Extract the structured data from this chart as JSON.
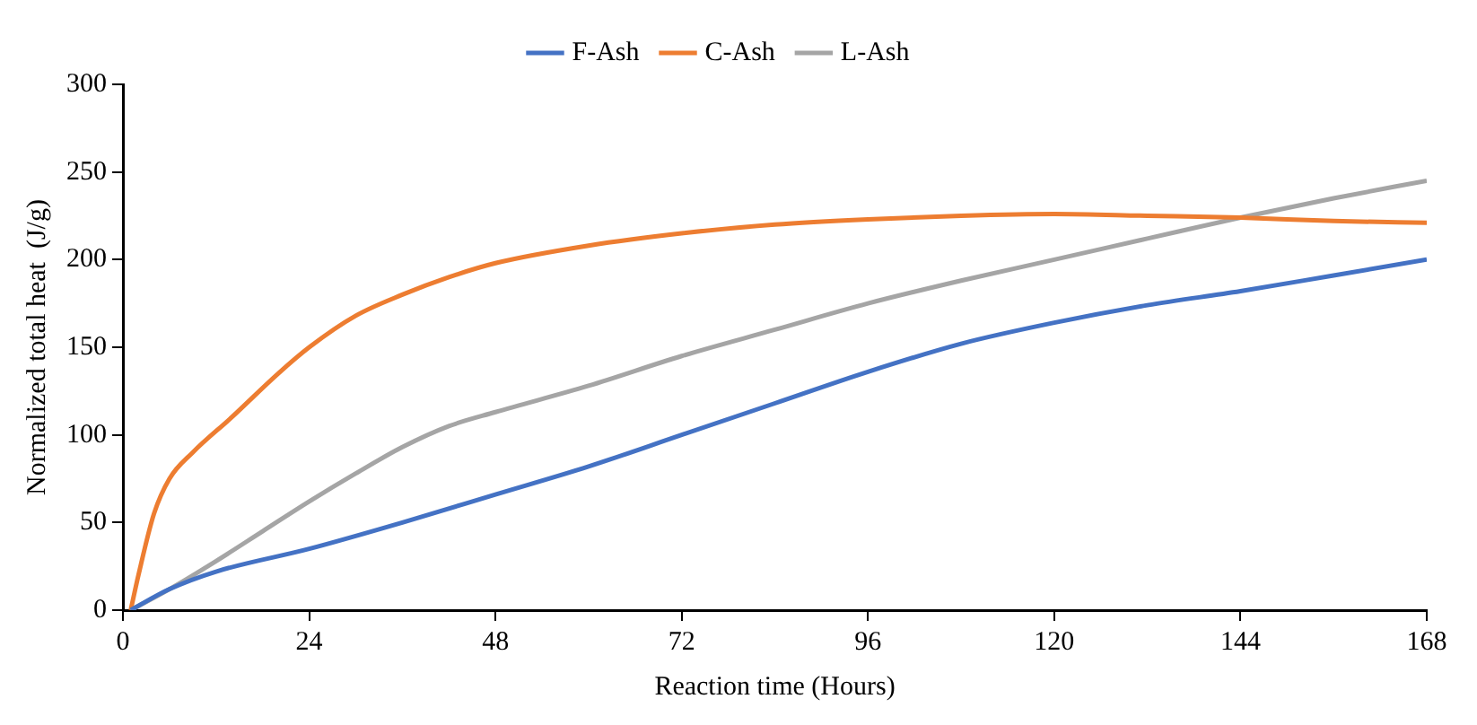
{
  "chart_data": {
    "type": "line",
    "xlabel": "Reaction time (Hours)",
    "ylabel": "Normalized total heat  (J/g)",
    "xlim": [
      0,
      168
    ],
    "xticks": [
      0,
      24,
      48,
      72,
      96,
      120,
      144,
      168
    ],
    "ylim": [
      0,
      300
    ],
    "yticks": [
      0,
      50,
      100,
      150,
      200,
      250,
      300
    ],
    "grid": false,
    "legend": "top",
    "marker": "none",
    "line_style": "solid",
    "series": [
      {
        "name": "F-Ash",
        "color": "#4472c4",
        "x": [
          1,
          6,
          12,
          24,
          36,
          48,
          60,
          72,
          84,
          96,
          108,
          120,
          132,
          144,
          156,
          168
        ],
        "values": [
          0,
          12,
          22,
          35,
          50,
          66,
          82,
          100,
          118,
          136,
          152,
          164,
          174,
          182,
          191,
          200
        ]
      },
      {
        "name": "C-Ash",
        "color": "#ed7d31",
        "x": [
          1,
          2,
          4,
          6,
          9,
          14,
          20,
          24,
          30,
          36,
          42,
          48,
          60,
          72,
          84,
          96,
          108,
          120,
          132,
          144,
          156,
          168
        ],
        "values": [
          0,
          20,
          55,
          75,
          90,
          110,
          135,
          150,
          168,
          180,
          190,
          198,
          208,
          215,
          220,
          223,
          225,
          226,
          225,
          224,
          222,
          221
        ]
      },
      {
        "name": "L-Ash",
        "color": "#a5a5a5",
        "x": [
          1,
          6,
          12,
          18,
          24,
          30,
          36,
          42,
          48,
          60,
          72,
          84,
          96,
          108,
          120,
          132,
          144,
          156,
          168
        ],
        "values": [
          0,
          12,
          28,
          45,
          62,
          78,
          93,
          105,
          113,
          128,
          145,
          160,
          175,
          188,
          200,
          212,
          224,
          235,
          245
        ]
      }
    ]
  }
}
